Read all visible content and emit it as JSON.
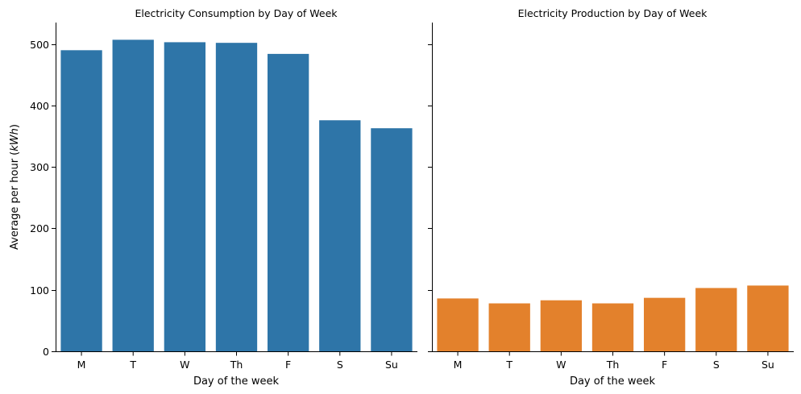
{
  "chart_data": {
    "type": "bar",
    "ylabel_prefix": "Average per hour (",
    "ylabel_unit": "kWh",
    "ylabel_suffix": ")",
    "ylim": [
      0,
      535
    ],
    "yticks": [
      0,
      100,
      200,
      300,
      400,
      500
    ],
    "grid": false,
    "panels": [
      {
        "title": "Electricity Consumption by Day of Week",
        "xlabel": "Day of the week",
        "color": "#2e75a8",
        "categories": [
          "M",
          "T",
          "W",
          "Th",
          "F",
          "S",
          "Su"
        ],
        "values": [
          490,
          507,
          503,
          502,
          484,
          376,
          363
        ]
      },
      {
        "title": "Electricity Production by Day of Week",
        "xlabel": "Day of the week",
        "color": "#e3812c",
        "categories": [
          "M",
          "T",
          "W",
          "Th",
          "F",
          "S",
          "Su"
        ],
        "values": [
          86,
          78,
          83,
          78,
          87,
          103,
          107
        ]
      }
    ]
  }
}
